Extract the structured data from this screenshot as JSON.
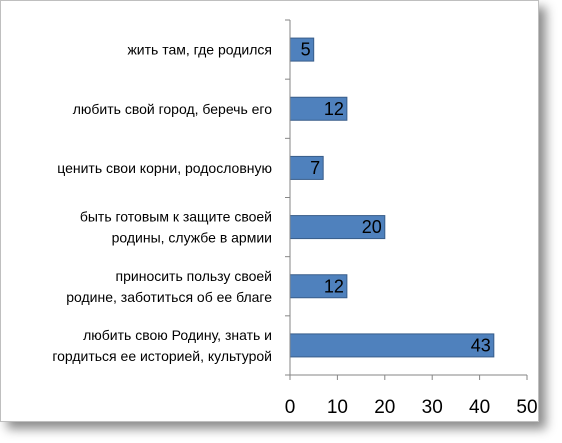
{
  "chart_data": {
    "type": "bar",
    "orientation": "horizontal",
    "categories": [
      [
        "жить там, где родился"
      ],
      [
        "любить свой город, беречь его"
      ],
      [
        "ценить свои корни, родословную"
      ],
      [
        "быть готовым к защите своей",
        "родины, службе в армии"
      ],
      [
        "приносить пользу своей",
        "родине, заботиться об ее благе"
      ],
      [
        "любить свою Родину, знать и",
        "гордиться ее историей, культурой"
      ]
    ],
    "values": [
      5,
      12,
      7,
      20,
      12,
      43
    ],
    "data_labels": [
      "5",
      "12",
      "7",
      "20",
      "12",
      "43"
    ],
    "xlim": [
      0,
      50
    ],
    "xticks": [
      "0",
      "10",
      "20",
      "30",
      "40",
      "50"
    ],
    "bar_color": "#4f81bd",
    "bar_border": "#385d8a",
    "grid": false,
    "legend": "none"
  }
}
